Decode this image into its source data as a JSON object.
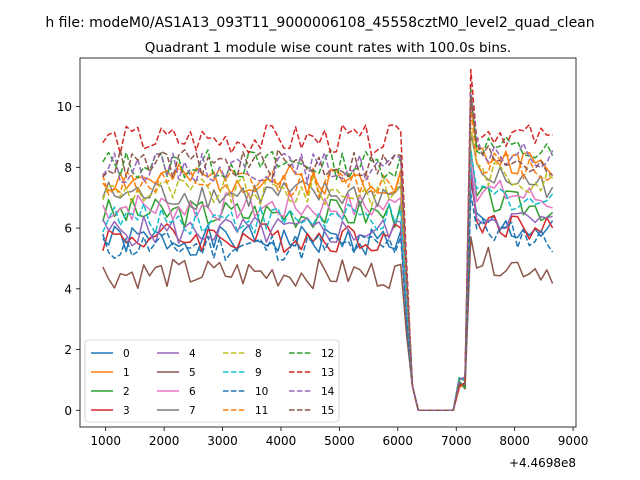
{
  "chart_data": {
    "type": "line",
    "suptitle": "h file: modeM0/AS1A13_093T11_9000006108_45558cztM0_level2_quad_clean",
    "title": "Quadrant 1 module wise count rates with 100.0s bins.",
    "xlabel": "",
    "ylabel": "",
    "offset_label": "+4.4698e8",
    "xlim": [
      560,
      9050
    ],
    "ylim": [
      -0.55,
      11.6
    ],
    "x_ticks": [
      1000,
      2000,
      3000,
      4000,
      5000,
      6000,
      7000,
      8000,
      9000
    ],
    "y_ticks": [
      0,
      2,
      4,
      6,
      8,
      10
    ],
    "legend_position": "lower-left",
    "series": [
      {
        "name": "0",
        "color": "#1f77b4",
        "dash": "solid",
        "base": 5.6,
        "post": 6.2,
        "seed": 1
      },
      {
        "name": "1",
        "color": "#ff7f0e",
        "dash": "solid",
        "base": 7.6,
        "post": 8.4,
        "seed": 2
      },
      {
        "name": "2",
        "color": "#2ca02c",
        "dash": "solid",
        "base": 6.5,
        "post": 7.0,
        "seed": 3
      },
      {
        "name": "3",
        "color": "#d62728",
        "dash": "solid",
        "base": 5.7,
        "post": 6.3,
        "seed": 4
      },
      {
        "name": "4",
        "color": "#9467bd",
        "dash": "solid",
        "base": 5.9,
        "post": 6.5,
        "seed": 5
      },
      {
        "name": "5",
        "color": "#8c564b",
        "dash": "solid",
        "base": 4.5,
        "post": 5.0,
        "seed": 6
      },
      {
        "name": "6",
        "color": "#e377c2",
        "dash": "solid",
        "base": 6.7,
        "post": 7.3,
        "seed": 7
      },
      {
        "name": "7",
        "color": "#7f7f7f",
        "dash": "solid",
        "base": 7.1,
        "post": 7.8,
        "seed": 8
      },
      {
        "name": "8",
        "color": "#bcbd22",
        "dash": "dashed",
        "base": 7.2,
        "post": 7.9,
        "seed": 9
      },
      {
        "name": "9",
        "color": "#17becf",
        "dash": "dashed",
        "base": 6.3,
        "post": 7.2,
        "seed": 10
      },
      {
        "name": "10",
        "color": "#1f77b4",
        "dash": "dashed",
        "base": 5.4,
        "post": 6.0,
        "seed": 11
      },
      {
        "name": "11",
        "color": "#ff7f0e",
        "dash": "dashed",
        "base": 7.5,
        "post": 8.3,
        "seed": 12
      },
      {
        "name": "12",
        "color": "#2ca02c",
        "dash": "dashed",
        "base": 8.1,
        "post": 8.8,
        "seed": 13
      },
      {
        "name": "13",
        "color": "#d62728",
        "dash": "dashed",
        "base": 8.9,
        "post": 9.3,
        "seed": 14
      },
      {
        "name": "14",
        "color": "#9467bd",
        "dash": "dashed",
        "base": 8.0,
        "post": 8.6,
        "seed": 15
      },
      {
        "name": "15",
        "color": "#8c564b",
        "dash": "dashed",
        "base": 8.1,
        "post": 8.5,
        "seed": 16
      }
    ]
  }
}
